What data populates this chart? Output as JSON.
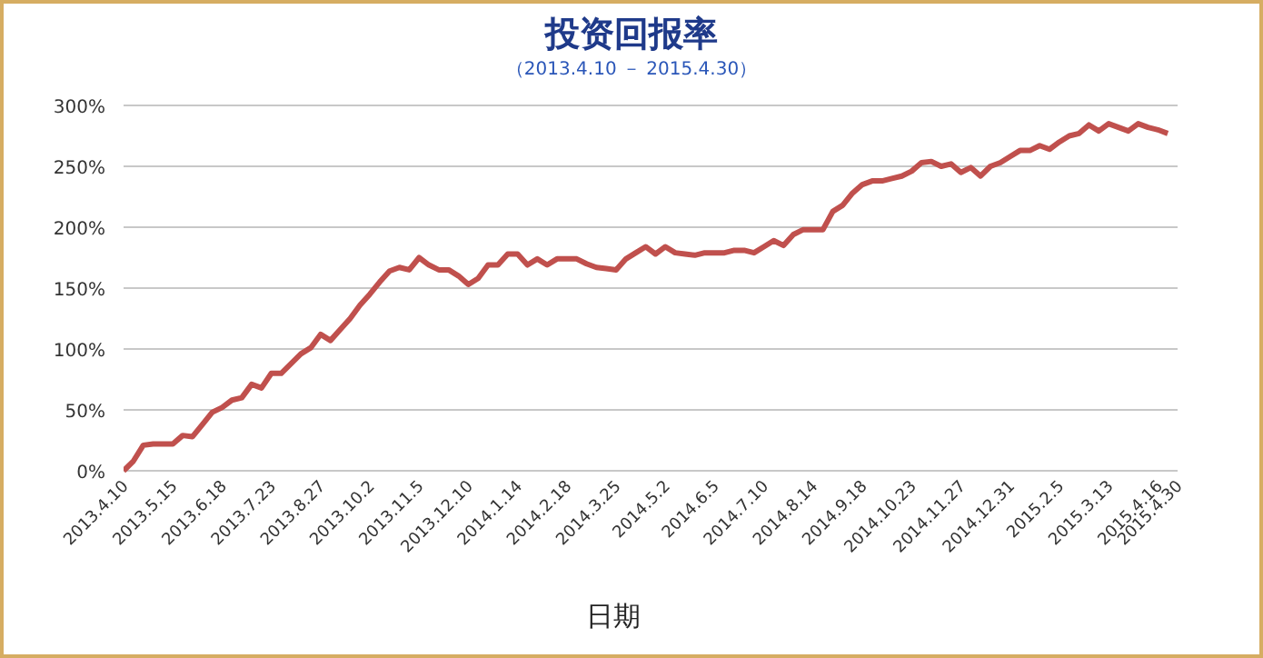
{
  "chart_data": {
    "type": "line",
    "title": "投资回报率",
    "subtitle": "（2013.4.10 － 2015.4.30）",
    "xlabel": "日期",
    "categories": [
      "2013.4.10",
      null,
      null,
      null,
      null,
      "2013.5.15",
      null,
      null,
      null,
      null,
      "2013.6.18",
      null,
      null,
      null,
      null,
      "2013.7.23",
      null,
      null,
      null,
      null,
      "2013.8.27",
      null,
      null,
      null,
      null,
      "2013.10.2",
      null,
      null,
      null,
      null,
      "2013.11.5",
      null,
      null,
      null,
      null,
      "2013.12.10",
      null,
      null,
      null,
      null,
      "2014.1.14",
      null,
      null,
      null,
      null,
      "2014.2.18",
      null,
      null,
      null,
      null,
      "2014.3.25",
      null,
      null,
      null,
      null,
      "2014.5.2",
      null,
      null,
      null,
      null,
      "2014.6.5",
      null,
      null,
      null,
      null,
      "2014.7.10",
      null,
      null,
      null,
      null,
      "2014.8.14",
      null,
      null,
      null,
      null,
      "2014.9.18",
      null,
      null,
      null,
      null,
      "2014.10.23",
      null,
      null,
      null,
      null,
      "2014.11.27",
      null,
      null,
      null,
      null,
      "2014.12.31",
      null,
      null,
      null,
      null,
      "2015.2.5",
      null,
      null,
      null,
      null,
      "2015.3.13",
      null,
      null,
      null,
      null,
      "2015.4.16",
      null,
      "2015.4.30"
    ],
    "series": [
      {
        "color": "#c0504d",
        "values": [
          0,
          8,
          21,
          22,
          22,
          22,
          29,
          28,
          38,
          48,
          52,
          58,
          60,
          71,
          68,
          80,
          80,
          88,
          96,
          101,
          112,
          107,
          116,
          125,
          136,
          145,
          155,
          164,
          167,
          165,
          175,
          169,
          165,
          165,
          160,
          153,
          158,
          169,
          169,
          178,
          178,
          169,
          174,
          169,
          174,
          174,
          174,
          170,
          167,
          166,
          165,
          174,
          179,
          184,
          178,
          184,
          179,
          178,
          177,
          179,
          179,
          179,
          181,
          181,
          179,
          184,
          189,
          185,
          194,
          198,
          198,
          198,
          213,
          218,
          228,
          235,
          238,
          238,
          240,
          242,
          246,
          253,
          254,
          250,
          252,
          245,
          249,
          242,
          250,
          253,
          258,
          263,
          263,
          267,
          264,
          270,
          275,
          277,
          284,
          279,
          285,
          282,
          279,
          285,
          282,
          280,
          277,
          null
        ]
      }
    ],
    "ylim": [
      0,
      300
    ],
    "yticks": [
      {
        "value": 0,
        "label": "0%"
      },
      {
        "value": 50,
        "label": "50%"
      },
      {
        "value": 100,
        "label": "100%"
      },
      {
        "value": 150,
        "label": "150%"
      },
      {
        "value": 200,
        "label": "200%"
      },
      {
        "value": 250,
        "label": "250%"
      },
      {
        "value": 300,
        "label": "300%"
      }
    ],
    "grid": "y",
    "marker": "none",
    "line_style": "solid"
  }
}
